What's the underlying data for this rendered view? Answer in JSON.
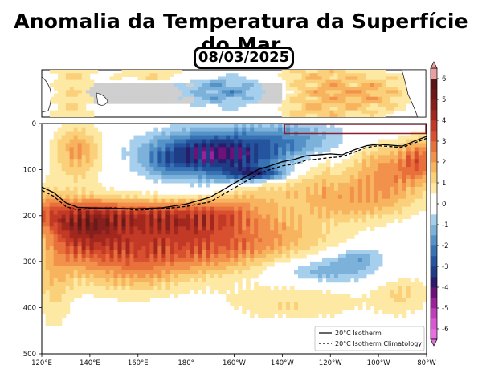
{
  "title": "Anomalia da Temperatura da Superfície do Mar",
  "date": "08/03/2025",
  "chart_data": {
    "type": "heatmap",
    "title": "Anomalia da Temperatura da Superfície do Mar",
    "date": "08/03/2025",
    "x_axis": {
      "range": [
        120,
        280
      ],
      "ticks": [
        120,
        140,
        160,
        180,
        200,
        220,
        240,
        260,
        280
      ],
      "tick_labels": [
        "120°E",
        "140°E",
        "160°E",
        "180°",
        "160°W",
        "140°W",
        "120°W",
        "100°W",
        "80°W"
      ]
    },
    "y_axis": {
      "range": [
        0,
        500
      ],
      "inverted": true,
      "ticks": [
        0,
        100,
        200,
        300,
        400,
        500
      ],
      "tick_labels": [
        "0",
        "100",
        "200",
        "300",
        "400",
        "500"
      ]
    },
    "colorbar": {
      "range": [
        -6.5,
        6.5
      ],
      "ticks": [
        -6,
        -5,
        -4,
        -3,
        -2,
        -1,
        0,
        1,
        2,
        3,
        4,
        5,
        6
      ],
      "tick_labels": [
        "-6",
        "-5",
        "-4",
        "-3",
        "-2",
        "-1",
        "0",
        "1",
        "2",
        "3",
        "4",
        "5",
        "6"
      ],
      "levels": [
        -6.5,
        -6,
        -5.5,
        -5,
        -4.5,
        -4,
        -3.5,
        -3,
        -2.5,
        -2,
        -1.5,
        -1,
        -0.5,
        0.5,
        1,
        1.5,
        2,
        2.5,
        3,
        3.5,
        4,
        4.5,
        5,
        5.5,
        6,
        6.5
      ],
      "colors": [
        "#e86fe0",
        "#d957d3",
        "#bf3cbd",
        "#9a239c",
        "#6d1278",
        "#2a1b6b",
        "#1f3d86",
        "#24559e",
        "#3672b4",
        "#5592c8",
        "#7cb2da",
        "#a5cfec",
        "#ffffff",
        "#fde9a3",
        "#fbd07a",
        "#f8b35f",
        "#f2914b",
        "#e8703b",
        "#d8502f",
        "#c23a26",
        "#a2281f",
        "#86201c",
        "#6b1a19",
        "#5a1717",
        "#ea9fa0"
      ]
    },
    "series": [
      {
        "name": "20°C Isotherm",
        "style": "solid",
        "x": [
          120,
          125,
          130,
          135,
          140,
          150,
          160,
          170,
          180,
          190,
          200,
          205,
          210,
          215,
          220,
          225,
          230,
          240,
          245,
          250,
          255,
          260,
          265,
          270,
          275,
          280
        ],
        "y": [
          138,
          150,
          172,
          182,
          183,
          184,
          185,
          183,
          175,
          160,
          130,
          115,
          100,
          92,
          83,
          78,
          70,
          66,
          68,
          57,
          48,
          45,
          47,
          49,
          38,
          28
        ]
      },
      {
        "name": "20°C Isotherm Climatology",
        "style": "dashed",
        "x": [
          120,
          125,
          130,
          135,
          140,
          150,
          160,
          170,
          180,
          190,
          200,
          205,
          210,
          215,
          220,
          225,
          230,
          240,
          245,
          250,
          255,
          260,
          265,
          270,
          275,
          280
        ],
        "y": [
          145,
          158,
          180,
          188,
          184,
          183,
          188,
          185,
          180,
          170,
          140,
          125,
          110,
          100,
          92,
          88,
          80,
          74,
          72,
          62,
          52,
          48,
          50,
          52,
          42,
          32
        ]
      }
    ],
    "legend": {
      "position": "bottom-right",
      "entries": [
        "20°C Isotherm",
        "20°C Isotherm Climatology"
      ]
    },
    "inset_map": {
      "description_free": true,
      "highlight_box_lon": [
        221,
        280
      ],
      "highlight_box_depth": [
        0,
        20
      ]
    }
  },
  "colors": {
    "isotherm": "#000000",
    "highlight_box": "#8a2030"
  }
}
